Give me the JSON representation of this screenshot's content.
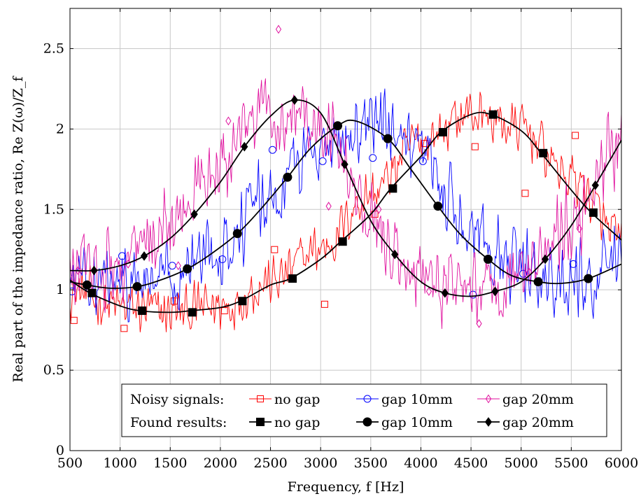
{
  "chart_data": {
    "type": "line",
    "xlabel": "Frequency, f [Hz]",
    "ylabel": "Real part of the impedance ratio, Re Z(ω)/Z_f",
    "xlim": [
      500,
      6000
    ],
    "ylim": [
      0,
      2.75
    ],
    "xticks": [
      500,
      1000,
      1500,
      2000,
      2500,
      3000,
      3500,
      4000,
      4500,
      5000,
      5500,
      6000
    ],
    "yticks": [
      0,
      0.5,
      1,
      1.5,
      2,
      2.5
    ],
    "ytick_labels": [
      "0",
      "0.5",
      "1",
      "1.5",
      "2",
      "2.5"
    ],
    "grid": true,
    "legend_placement": "bottom-right",
    "legend": {
      "row_labels": [
        "Noisy signals:",
        "Found results:"
      ],
      "entries": [
        "no gap",
        "gap 10mm",
        "gap 20mm"
      ]
    },
    "noisy_series": [
      {
        "name": "no gap",
        "color": "#ff0000",
        "marker": "square-open",
        "markers_x": [
          540,
          1040,
          1540,
          2040,
          2540,
          3040,
          3540,
          4040,
          4540,
          5040,
          5540
        ],
        "markers_y": [
          0.81,
          0.76,
          0.93,
          0.87,
          1.25,
          0.91,
          1.47,
          1.91,
          1.89,
          1.6,
          1.96
        ],
        "trend_x": [
          500,
          1000,
          1500,
          2000,
          2500,
          3000,
          3500,
          4000,
          4500,
          5000,
          5500,
          6000
        ],
        "trend_y": [
          1.0,
          0.89,
          0.86,
          0.9,
          1.05,
          1.26,
          1.6,
          1.93,
          2.1,
          2.0,
          1.7,
          1.3
        ],
        "noise_amplitude": 0.2
      },
      {
        "name": "gap 10mm",
        "color": "#0000ff",
        "marker": "circle-open",
        "markers_x": [
          520,
          1020,
          1520,
          2020,
          2520,
          3020,
          3520,
          4020,
          4520,
          5020,
          5520
        ],
        "markers_y": [
          0.99,
          1.21,
          1.15,
          1.19,
          1.87,
          1.8,
          1.82,
          1.8,
          0.97,
          1.1,
          1.16
        ],
        "trend_x": [
          500,
          1000,
          1500,
          2000,
          2500,
          3000,
          3500,
          4000,
          4500,
          5000,
          5500,
          6000
        ],
        "trend_y": [
          1.06,
          1.02,
          1.07,
          1.28,
          1.58,
          1.93,
          2.04,
          1.79,
          1.42,
          1.12,
          1.04,
          1.15
        ],
        "noise_amplitude": 0.28
      },
      {
        "name": "gap 20mm",
        "color": "#e0109e",
        "marker": "diamond-open",
        "markers_x": [
          580,
          1080,
          1580,
          2080,
          2580,
          3080,
          3580,
          4080,
          4580,
          5080,
          5580
        ],
        "markers_y": [
          1.12,
          1.16,
          1.15,
          2.05,
          2.62,
          1.52,
          1.5,
          0.99,
          0.79,
          1.11,
          1.38
        ],
        "trend_x": [
          500,
          1000,
          1500,
          2000,
          2500,
          3000,
          3500,
          4000,
          4500,
          5000,
          5500,
          6000
        ],
        "trend_y": [
          1.11,
          1.15,
          1.41,
          1.8,
          2.12,
          2.08,
          1.42,
          1.06,
          0.98,
          1.08,
          1.45,
          1.92
        ],
        "noise_amplitude": 0.3
      }
    ],
    "fit_series": [
      {
        "name": "no gap",
        "color": "#000000",
        "marker": "square-filled",
        "x": [
          500,
          700,
          1000,
          1200,
          1500,
          1700,
          2000,
          2200,
          2500,
          2700,
          3000,
          3200,
          3500,
          3700,
          4000,
          4200,
          4500,
          4700,
          5000,
          5200,
          5500,
          5700,
          6000
        ],
        "y": [
          1.06,
          0.98,
          0.9,
          0.87,
          0.86,
          0.87,
          0.89,
          0.93,
          1.03,
          1.07,
          1.19,
          1.3,
          1.47,
          1.63,
          1.83,
          1.98,
          2.09,
          2.09,
          1.99,
          1.85,
          1.62,
          1.48,
          1.31
        ],
        "markers_x": [
          720,
          1220,
          1720,
          2220,
          2720,
          3220,
          3720,
          4220,
          4720,
          5220,
          5720
        ],
        "markers_y": [
          0.98,
          0.87,
          0.86,
          0.93,
          1.07,
          1.3,
          1.63,
          1.98,
          2.09,
          1.85,
          1.48
        ]
      },
      {
        "name": "gap 10mm",
        "color": "#000000",
        "marker": "circle-filled",
        "x": [
          500,
          670,
          900,
          1170,
          1400,
          1670,
          1900,
          2170,
          2400,
          2670,
          2900,
          3170,
          3350,
          3670,
          3900,
          4170,
          4400,
          4670,
          4900,
          5170,
          5400,
          5670,
          6000
        ],
        "y": [
          1.05,
          1.03,
          1.01,
          1.02,
          1.06,
          1.13,
          1.22,
          1.35,
          1.5,
          1.7,
          1.88,
          2.02,
          2.05,
          1.94,
          1.75,
          1.52,
          1.34,
          1.19,
          1.09,
          1.05,
          1.04,
          1.07,
          1.16
        ],
        "markers_x": [
          670,
          1170,
          1670,
          2170,
          2670,
          3170,
          3670,
          4170,
          4670,
          5170,
          5670
        ],
        "markers_y": [
          1.03,
          1.02,
          1.13,
          1.35,
          1.7,
          2.02,
          1.94,
          1.52,
          1.19,
          1.05,
          1.07
        ]
      },
      {
        "name": "gap 20mm",
        "color": "#000000",
        "marker": "diamond-filled",
        "x": [
          500,
          740,
          1000,
          1240,
          1500,
          1740,
          2000,
          2240,
          2500,
          2740,
          3000,
          3240,
          3500,
          3740,
          4000,
          4240,
          4500,
          4740,
          5000,
          5240,
          5500,
          5740,
          6000
        ],
        "y": [
          1.12,
          1.12,
          1.15,
          1.21,
          1.32,
          1.47,
          1.67,
          1.89,
          2.08,
          2.18,
          2.1,
          1.78,
          1.43,
          1.22,
          1.05,
          0.98,
          0.96,
          0.99,
          1.05,
          1.19,
          1.4,
          1.65,
          1.93
        ],
        "markers_x": [
          740,
          1240,
          1740,
          2240,
          2740,
          3240,
          3740,
          4240,
          4740,
          5240,
          5740
        ],
        "markers_y": [
          1.12,
          1.21,
          1.47,
          1.89,
          2.18,
          1.78,
          1.22,
          0.98,
          0.99,
          1.19,
          1.65
        ]
      }
    ]
  }
}
